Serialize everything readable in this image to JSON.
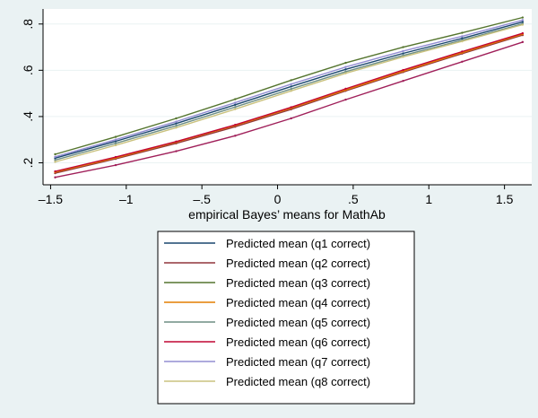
{
  "chart_data": {
    "type": "line",
    "title": "",
    "xlabel": "empirical Bayes’ means for MathAb",
    "ylabel": "",
    "xlim": [
      -1.55,
      1.68
    ],
    "ylim": [
      0.105,
      0.865
    ],
    "x_ticks": [
      -1.5,
      -1,
      -0.5,
      0,
      0.5,
      1,
      1.5
    ],
    "x_tick_labels": [
      "–1.5",
      "–1",
      "–.5",
      "0",
      ".5",
      "1",
      "1.5"
    ],
    "y_ticks": [
      0.2,
      0.4,
      0.6,
      0.8
    ],
    "y_tick_labels": [
      ".2",
      ".4",
      ".6",
      ".8"
    ],
    "grid": true,
    "legend_position": "bottom",
    "x": [
      -1.47,
      -1.07,
      -0.67,
      -0.28,
      0.09,
      0.45,
      0.83,
      1.22,
      1.62
    ],
    "series": [
      {
        "name": "Predicted mean (q1 correct)",
        "color": "#1a476f",
        "values": [
          0.22,
          0.293,
          0.37,
          0.451,
          0.53,
          0.604,
          0.673,
          0.738,
          0.809
        ]
      },
      {
        "name": "Predicted mean (q2 correct)",
        "color": "#90353b",
        "values": [
          0.155,
          0.217,
          0.284,
          0.356,
          0.431,
          0.511,
          0.592,
          0.672,
          0.752
        ]
      },
      {
        "name": "Predicted mean (q3 correct)",
        "color": "#55752f",
        "values": [
          0.237,
          0.312,
          0.392,
          0.475,
          0.557,
          0.632,
          0.7,
          0.762,
          0.828
        ]
      },
      {
        "name": "Predicted mean (q4 correct)",
        "color": "#e37e00",
        "values": [
          0.16,
          0.221,
          0.289,
          0.361,
          0.436,
          0.515,
          0.596,
          0.676,
          0.756
        ]
      },
      {
        "name": "Predicted mean (q5 correct)",
        "color": "#6e8e84",
        "values": [
          0.212,
          0.284,
          0.36,
          0.441,
          0.519,
          0.594,
          0.664,
          0.73,
          0.801
        ]
      },
      {
        "name": "Predicted mean (q6 correct)",
        "color": "#c10534",
        "values": [
          0.163,
          0.225,
          0.292,
          0.364,
          0.44,
          0.52,
          0.601,
          0.681,
          0.76
        ]
      },
      {
        "name": "Predicted mean (q7 correct)",
        "color": "#938dd2",
        "values": [
          0.226,
          0.3,
          0.378,
          0.46,
          0.54,
          0.614,
          0.683,
          0.747,
          0.817
        ]
      },
      {
        "name": "Predicted mean (q8 correct)",
        "color": "#cac27e",
        "values": [
          0.204,
          0.276,
          0.352,
          0.432,
          0.511,
          0.587,
          0.658,
          0.725,
          0.797
        ]
      },
      {
        "name": "",
        "color": "#a0205a",
        "values": [
          0.137,
          0.19,
          0.25,
          0.317,
          0.392,
          0.473,
          0.554,
          0.637,
          0.722
        ]
      }
    ]
  }
}
